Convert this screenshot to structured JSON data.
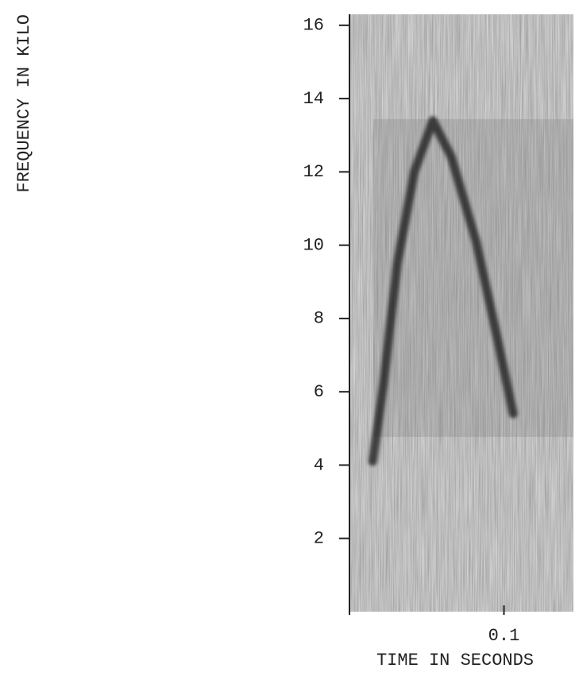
{
  "chart_data": {
    "type": "spectrogram",
    "y_label": "FREQUENCY IN KILO",
    "x_label": "TIME IN SECONDS",
    "x": [
      0.015,
      0.022,
      0.031,
      0.042,
      0.054,
      0.066,
      0.082,
      0.095,
      0.106
    ],
    "values": [
      4.1,
      6.2,
      9.5,
      12.0,
      13.4,
      12.4,
      10.1,
      7.6,
      5.4
    ],
    "color": "#1a1a1a",
    "xlim": [
      0,
      0.145
    ],
    "ylim": [
      0,
      16.3
    ],
    "xticks": [
      0,
      0.1
    ],
    "yticks": [
      2,
      4,
      6,
      8,
      10,
      12,
      14,
      16
    ]
  }
}
